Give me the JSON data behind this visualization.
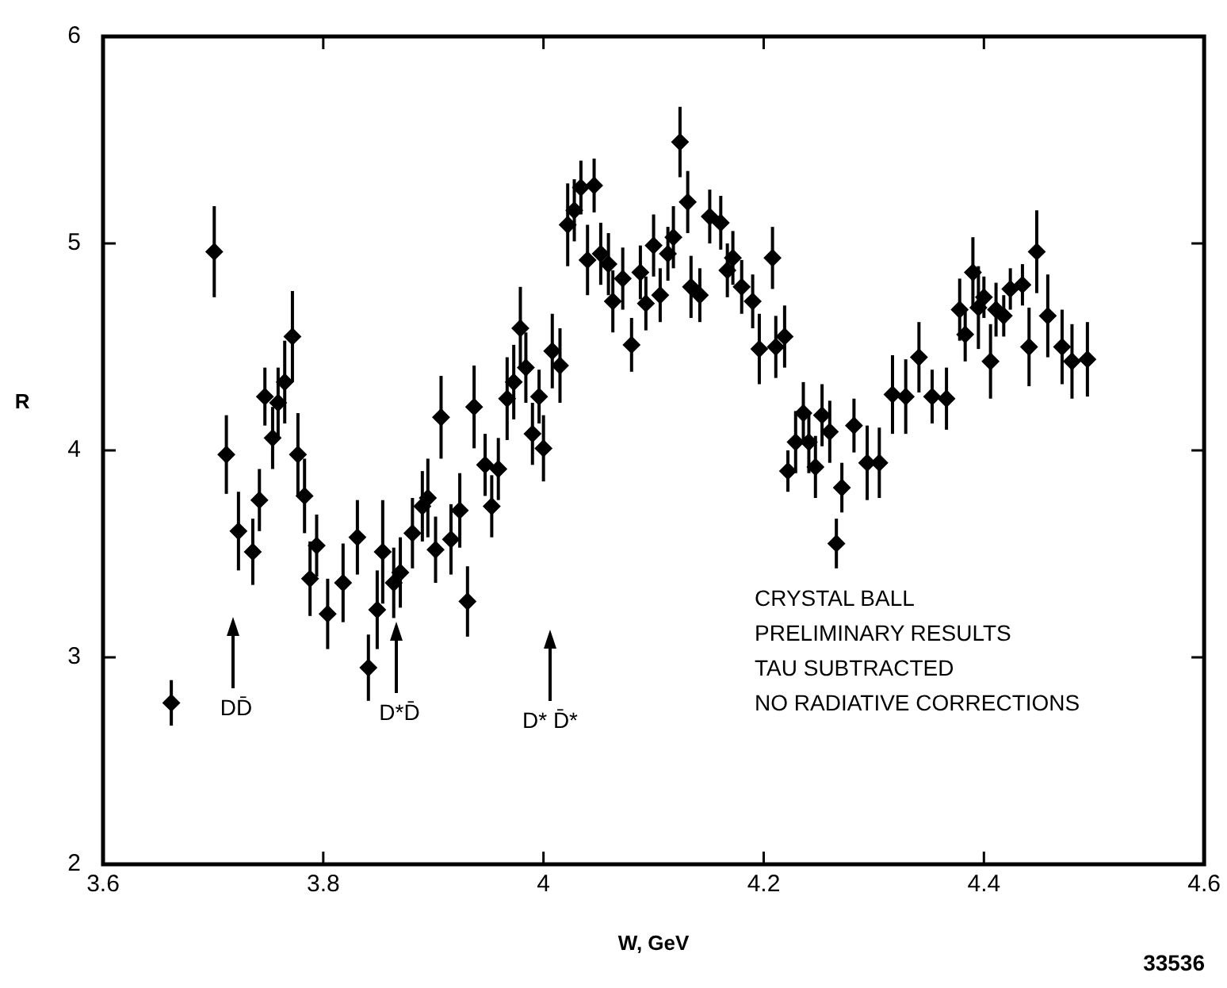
{
  "chart_data": {
    "type": "scatter",
    "xlabel": "W, GeV",
    "ylabel": "R",
    "xlim": [
      3.6,
      4.6
    ],
    "ylim": [
      2,
      6
    ],
    "xticks": [
      3.6,
      3.8,
      4.0,
      4.2,
      4.4,
      4.6
    ],
    "yticks": [
      2,
      3,
      4,
      5,
      6
    ],
    "grid": false,
    "marker": "diamond",
    "legend": false,
    "series": [
      {
        "color": "#000000",
        "x": [
          3.662,
          3.701,
          3.712,
          3.723,
          3.736,
          3.742,
          3.747,
          3.754,
          3.759,
          3.765,
          3.772,
          3.777,
          3.783,
          3.788,
          3.794,
          3.804,
          3.818,
          3.831,
          3.841,
          3.849,
          3.854,
          3.864,
          3.87,
          3.881,
          3.89,
          3.895,
          3.902,
          3.907,
          3.916,
          3.924,
          3.931,
          3.937,
          3.947,
          3.953,
          3.959,
          3.967,
          3.973,
          3.979,
          3.984,
          3.99,
          3.996,
          4.0,
          4.008,
          4.015,
          4.022,
          4.028,
          4.034,
          4.046,
          4.04,
          4.052,
          4.059,
          4.063,
          4.072,
          4.08,
          4.088,
          4.093,
          4.1,
          4.106,
          4.113,
          4.118,
          4.124,
          4.131,
          4.134,
          4.142,
          4.151,
          4.161,
          4.167,
          4.172,
          4.18,
          4.19,
          4.196,
          4.208,
          4.211,
          4.219,
          4.222,
          4.229,
          4.236,
          4.241,
          4.247,
          4.253,
          4.26,
          4.266,
          4.271,
          4.282,
          4.294,
          4.305,
          4.317,
          4.329,
          4.341,
          4.353,
          4.366,
          4.378,
          4.383,
          4.39,
          4.395,
          4.4,
          4.406,
          4.411,
          4.418,
          4.424,
          4.435,
          4.441,
          4.448,
          4.458,
          4.471,
          4.48,
          4.494
        ],
        "values": [
          2.78,
          4.96,
          3.98,
          3.61,
          3.51,
          3.76,
          4.26,
          4.06,
          4.23,
          4.33,
          4.55,
          3.98,
          3.78,
          3.38,
          3.54,
          3.21,
          3.36,
          3.58,
          2.95,
          3.23,
          3.51,
          3.36,
          3.41,
          3.6,
          3.73,
          3.77,
          3.52,
          4.16,
          3.57,
          3.71,
          3.27,
          4.21,
          3.93,
          3.73,
          3.91,
          4.25,
          4.33,
          4.59,
          4.4,
          4.08,
          4.26,
          4.01,
          4.48,
          4.41,
          5.09,
          5.16,
          5.27,
          5.28,
          4.92,
          4.95,
          4.9,
          4.72,
          4.83,
          4.51,
          4.86,
          4.71,
          4.99,
          4.75,
          4.95,
          5.03,
          5.49,
          5.2,
          4.79,
          4.75,
          5.13,
          5.1,
          4.87,
          4.93,
          4.79,
          4.72,
          4.49,
          4.93,
          4.5,
          4.55,
          3.9,
          4.04,
          4.18,
          4.04,
          3.92,
          4.17,
          4.09,
          3.55,
          3.82,
          4.12,
          3.94,
          3.94,
          4.27,
          4.26,
          4.45,
          4.26,
          4.25,
          4.68,
          4.56,
          4.86,
          4.69,
          4.74,
          4.43,
          4.68,
          4.65,
          4.78,
          4.8,
          4.5,
          4.96,
          4.65,
          4.5,
          4.43,
          4.44
        ],
        "errors": [
          0.11,
          0.22,
          0.19,
          0.19,
          0.16,
          0.15,
          0.14,
          0.15,
          0.17,
          0.2,
          0.22,
          0.2,
          0.18,
          0.18,
          0.15,
          0.17,
          0.19,
          0.18,
          0.16,
          0.19,
          0.25,
          0.17,
          0.17,
          0.17,
          0.17,
          0.19,
          0.16,
          0.2,
          0.17,
          0.18,
          0.17,
          0.2,
          0.15,
          0.15,
          0.15,
          0.2,
          0.18,
          0.2,
          0.17,
          0.15,
          0.13,
          0.16,
          0.18,
          0.18,
          0.2,
          0.15,
          0.13,
          0.13,
          0.17,
          0.15,
          0.15,
          0.15,
          0.15,
          0.13,
          0.13,
          0.13,
          0.15,
          0.13,
          0.13,
          0.15,
          0.17,
          0.15,
          0.15,
          0.13,
          0.13,
          0.13,
          0.13,
          0.13,
          0.13,
          0.13,
          0.17,
          0.15,
          0.15,
          0.15,
          0.1,
          0.15,
          0.15,
          0.15,
          0.15,
          0.15,
          0.15,
          0.12,
          0.12,
          0.13,
          0.18,
          0.17,
          0.19,
          0.18,
          0.17,
          0.13,
          0.15,
          0.15,
          0.13,
          0.17,
          0.2,
          0.1,
          0.18,
          0.13,
          0.1,
          0.1,
          0.1,
          0.19,
          0.2,
          0.2,
          0.18,
          0.18,
          0.18
        ]
      }
    ],
    "annotations": [
      "DD̄",
      "D*D̄",
      "D* D̄*",
      "CRYSTAL BALL",
      "PRELIMINARY RESULTS",
      "TAU SUBTRACTED",
      "NO RADIATIVE CORRECTIONS",
      "33536"
    ]
  }
}
